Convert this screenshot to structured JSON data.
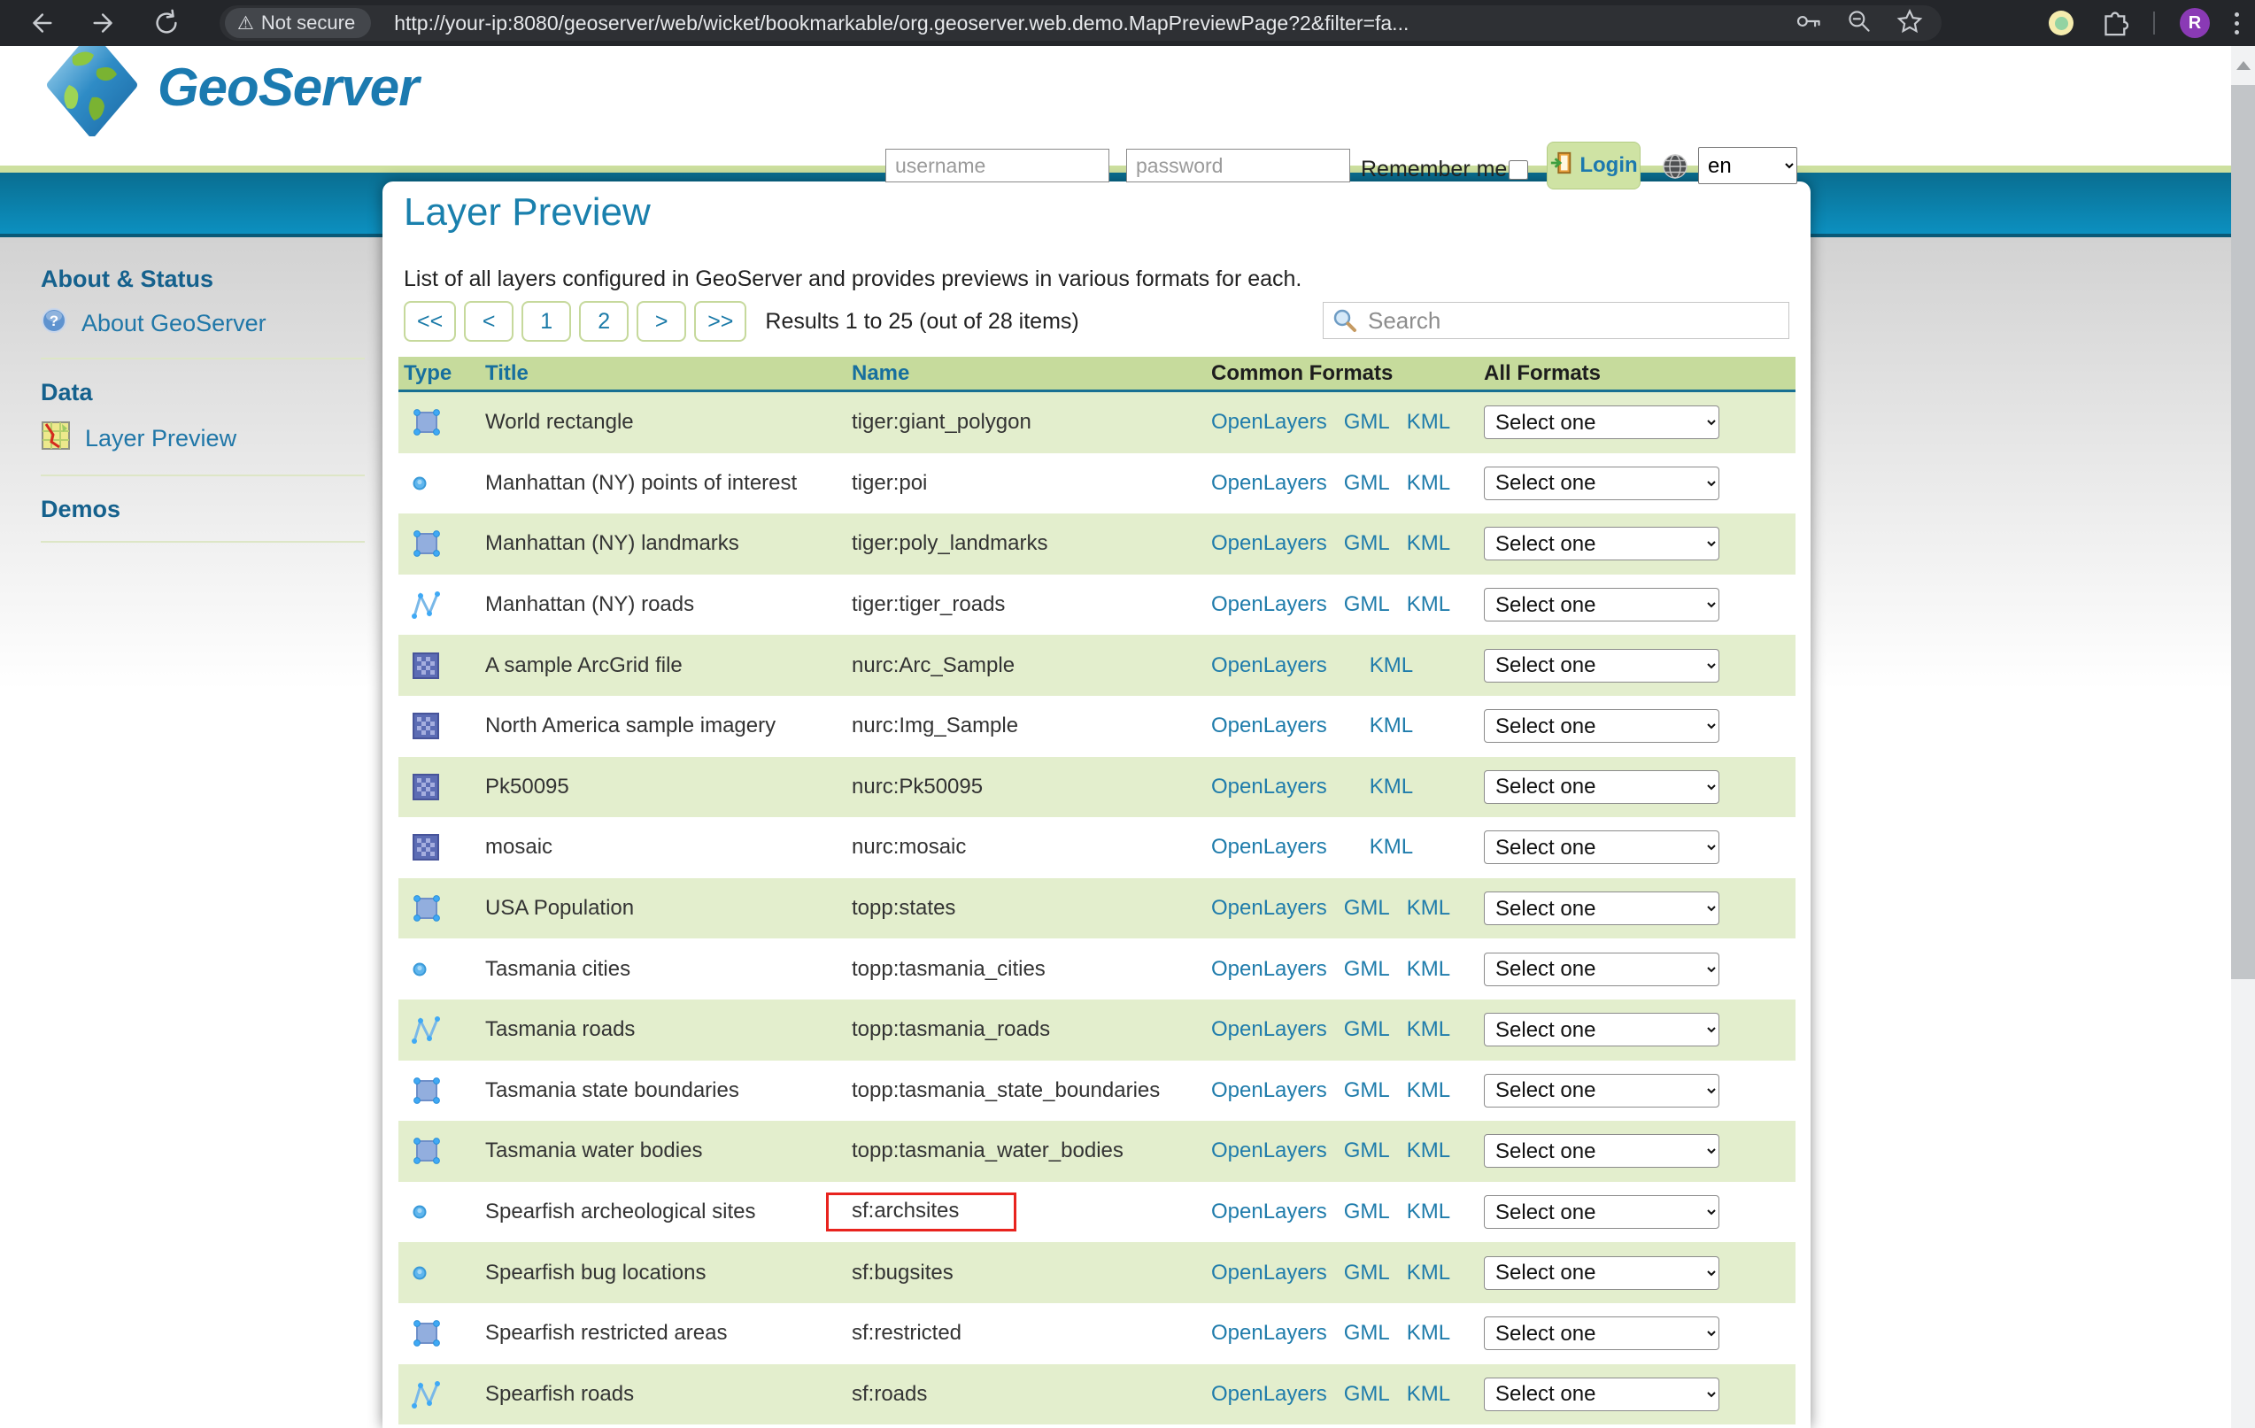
{
  "browser": {
    "security_chip": "Not secure",
    "url": "http://your-ip:8080/geoserver/web/wicket/bookmarkable/org.geoserver.web.demo.MapPreviewPage?2&filter=fa...",
    "avatar_initial": "R"
  },
  "header": {
    "brand": "GeoServer",
    "login": {
      "username_placeholder": "username",
      "password_placeholder": "password",
      "remember_label": "Remember me",
      "login_label": "Login",
      "language": "en"
    }
  },
  "sidebar": {
    "sections": [
      {
        "heading": "About & Status",
        "items": [
          {
            "label": "About GeoServer",
            "icon": "question-icon"
          }
        ]
      },
      {
        "heading": "Data",
        "items": [
          {
            "label": "Layer Preview",
            "icon": "map-icon"
          }
        ]
      },
      {
        "heading": "Demos",
        "items": []
      }
    ]
  },
  "main": {
    "title": "Layer Preview",
    "description": "List of all layers configured in GeoServer and provides previews in various formats for each.",
    "pagination": {
      "buttons": [
        "<<",
        "<",
        "1",
        "2",
        ">",
        ">>"
      ],
      "results_text": "Results 1 to 25 (out of 28 items)"
    },
    "search_placeholder": "Search",
    "table": {
      "columns": [
        {
          "label": "Type",
          "sortable": true
        },
        {
          "label": "Title",
          "sortable": true
        },
        {
          "label": "Name",
          "sortable": true
        },
        {
          "label": "Common Formats",
          "sortable": false
        },
        {
          "label": "All Formats",
          "sortable": false
        }
      ],
      "select_placeholder": "Select one",
      "rows": [
        {
          "type": "polygon",
          "title": "World rectangle",
          "name": "tiger:giant_polygon",
          "formats": [
            "OpenLayers",
            "GML",
            "KML"
          ],
          "highlighted": false
        },
        {
          "type": "point",
          "title": "Manhattan (NY) points of interest",
          "name": "tiger:poi",
          "formats": [
            "OpenLayers",
            "GML",
            "KML"
          ],
          "highlighted": false
        },
        {
          "type": "polygon",
          "title": "Manhattan (NY) landmarks",
          "name": "tiger:poly_landmarks",
          "formats": [
            "OpenLayers",
            "GML",
            "KML"
          ],
          "highlighted": false
        },
        {
          "type": "line",
          "title": "Manhattan (NY) roads",
          "name": "tiger:tiger_roads",
          "formats": [
            "OpenLayers",
            "GML",
            "KML"
          ],
          "highlighted": false
        },
        {
          "type": "raster",
          "title": "A sample ArcGrid file",
          "name": "nurc:Arc_Sample",
          "formats": [
            "OpenLayers",
            "KML"
          ],
          "highlighted": false
        },
        {
          "type": "raster",
          "title": "North America sample imagery",
          "name": "nurc:Img_Sample",
          "formats": [
            "OpenLayers",
            "KML"
          ],
          "highlighted": false
        },
        {
          "type": "raster",
          "title": "Pk50095",
          "name": "nurc:Pk50095",
          "formats": [
            "OpenLayers",
            "KML"
          ],
          "highlighted": false
        },
        {
          "type": "raster",
          "title": "mosaic",
          "name": "nurc:mosaic",
          "formats": [
            "OpenLayers",
            "KML"
          ],
          "highlighted": false
        },
        {
          "type": "polygon",
          "title": "USA Population",
          "name": "topp:states",
          "formats": [
            "OpenLayers",
            "GML",
            "KML"
          ],
          "highlighted": false
        },
        {
          "type": "point",
          "title": "Tasmania cities",
          "name": "topp:tasmania_cities",
          "formats": [
            "OpenLayers",
            "GML",
            "KML"
          ],
          "highlighted": false
        },
        {
          "type": "line",
          "title": "Tasmania roads",
          "name": "topp:tasmania_roads",
          "formats": [
            "OpenLayers",
            "GML",
            "KML"
          ],
          "highlighted": false
        },
        {
          "type": "polygon",
          "title": "Tasmania state boundaries",
          "name": "topp:tasmania_state_boundaries",
          "formats": [
            "OpenLayers",
            "GML",
            "KML"
          ],
          "highlighted": false
        },
        {
          "type": "polygon",
          "title": "Tasmania water bodies",
          "name": "topp:tasmania_water_bodies",
          "formats": [
            "OpenLayers",
            "GML",
            "KML"
          ],
          "highlighted": false
        },
        {
          "type": "point",
          "title": "Spearfish archeological sites",
          "name": "sf:archsites",
          "formats": [
            "OpenLayers",
            "GML",
            "KML"
          ],
          "highlighted": true
        },
        {
          "type": "point",
          "title": "Spearfish bug locations",
          "name": "sf:bugsites",
          "formats": [
            "OpenLayers",
            "GML",
            "KML"
          ],
          "highlighted": false
        },
        {
          "type": "polygon",
          "title": "Spearfish restricted areas",
          "name": "sf:restricted",
          "formats": [
            "OpenLayers",
            "GML",
            "KML"
          ],
          "highlighted": false
        },
        {
          "type": "line",
          "title": "Spearfish roads",
          "name": "sf:roads",
          "formats": [
            "OpenLayers",
            "GML",
            "KML"
          ],
          "highlighted": false
        }
      ]
    }
  },
  "colors": {
    "accent_blue": "#1a7aa8",
    "nav_teal": "#0c90c0",
    "header_green": "#c6db9c",
    "row_green": "#e3eecd",
    "highlight_red": "#e8231e"
  }
}
